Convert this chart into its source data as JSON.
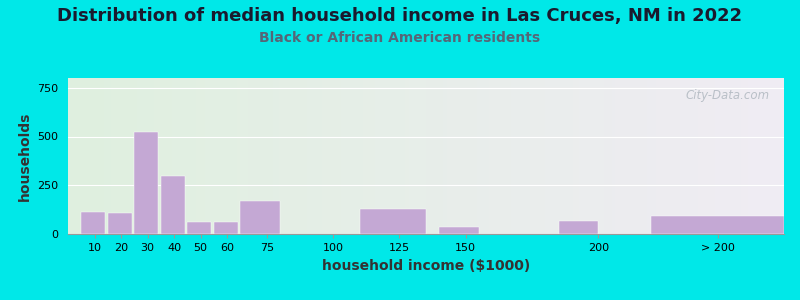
{
  "title": "Distribution of median household income in Las Cruces, NM in 2022",
  "subtitle": "Black or African American residents",
  "xlabel": "household income ($1000)",
  "ylabel": "households",
  "background_outer": "#00e8e8",
  "bar_color": "#c4a8d4",
  "yticks": [
    0,
    250,
    500,
    750
  ],
  "ylim": [
    0,
    800
  ],
  "bar_values": [
    115,
    108,
    525,
    300,
    60,
    60,
    170,
    130,
    35,
    65,
    90
  ],
  "bar_lefts": [
    5,
    15,
    25,
    35,
    45,
    55,
    65,
    110,
    140,
    185,
    220
  ],
  "bar_widths": [
    9,
    9,
    9,
    9,
    9,
    9,
    15,
    25,
    15,
    15,
    50
  ],
  "xtick_positions": [
    10,
    20,
    30,
    40,
    50,
    60,
    75,
    100,
    125,
    150,
    200
  ],
  "xtick_labels": [
    "10",
    "20",
    "30",
    "40",
    "50",
    "60",
    "75",
    "100",
    "125",
    "150",
    "200"
  ],
  "xtick_gt200_pos": 245,
  "xlim": [
    0,
    270
  ],
  "title_fontsize": 13,
  "subtitle_fontsize": 10,
  "axis_label_fontsize": 10,
  "tick_fontsize": 8,
  "watermark": "City-Data.com",
  "grid_color": "#ffffff",
  "subtitle_color": "#556677"
}
